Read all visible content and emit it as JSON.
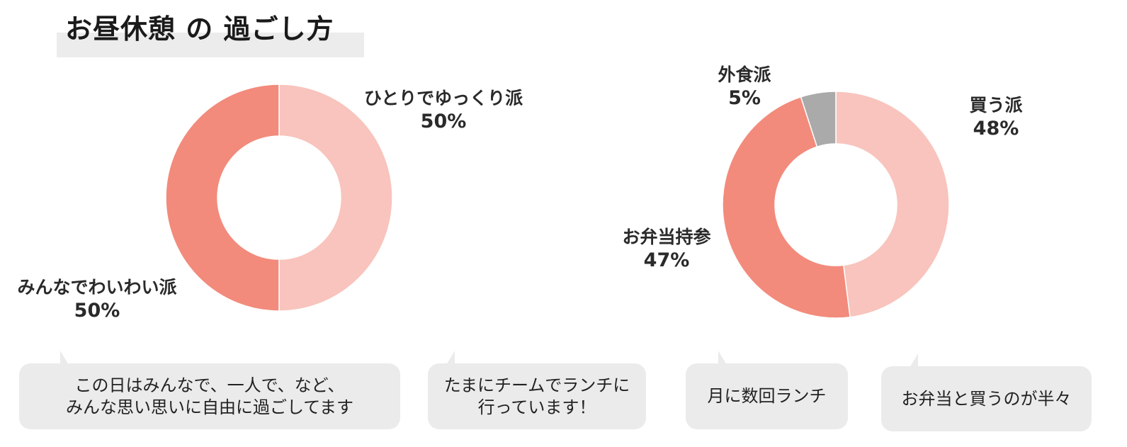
{
  "page": {
    "title": "お昼休憩 の 過ごし方"
  },
  "chart_data": [
    {
      "type": "pie",
      "donut": true,
      "categories": [
        "ひとりでゆっくり派",
        "みんなでわいわい派"
      ],
      "values": [
        50,
        50
      ],
      "value_labels": [
        "50%",
        "50%"
      ],
      "colors": [
        "#f8c4bd",
        "#f28b7c"
      ]
    },
    {
      "type": "pie",
      "donut": true,
      "categories": [
        "買う派",
        "お弁当持参",
        "外食派"
      ],
      "values": [
        48,
        47,
        5
      ],
      "value_labels": [
        "48%",
        "47%",
        "5%"
      ],
      "colors": [
        "#f8c4bd",
        "#f28b7c",
        "#aaaaaa"
      ]
    }
  ],
  "bubbles": [
    {
      "text": "この日はみんなで、一人で、など、\nみんな思い思いに自由に過ごしてます"
    },
    {
      "text": "たまにチームでランチに\n行っています！"
    },
    {
      "text": "月に数回ランチ"
    },
    {
      "text": "お弁当と買うのが半々"
    }
  ],
  "colors": {
    "bubble_bg": "#ebebeb",
    "title_band": "#ececec"
  }
}
